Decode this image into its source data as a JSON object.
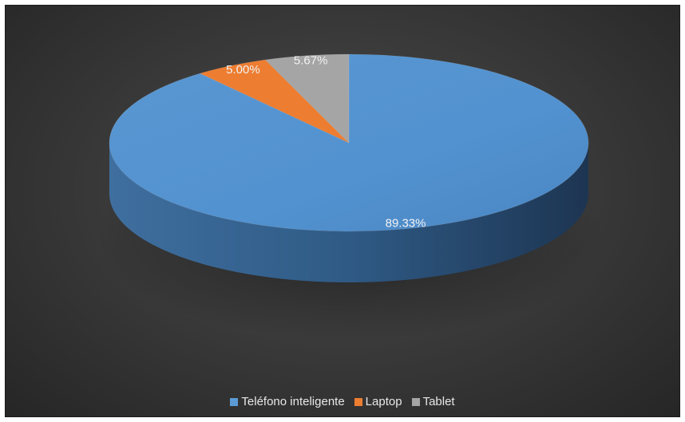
{
  "chart_data": {
    "type": "pie",
    "title": "",
    "series": [
      {
        "name": "Teléfono inteligente",
        "value": 89.33,
        "label": "89.33%",
        "color": "#5b9bd5"
      },
      {
        "name": "Laptop",
        "value": 5.0,
        "label": "5.00%",
        "color": "#ed7d31"
      },
      {
        "name": "Tablet",
        "value": 5.67,
        "label": "5.67%",
        "color": "#a5a5a5"
      }
    ],
    "legend_position": "bottom",
    "style": "3d-pie"
  },
  "legend": {
    "items": [
      {
        "label": "Teléfono inteligente",
        "color": "#5b9bd5"
      },
      {
        "label": "Laptop",
        "color": "#ed7d31"
      },
      {
        "label": "Tablet",
        "color": "#a5a5a5"
      }
    ]
  }
}
